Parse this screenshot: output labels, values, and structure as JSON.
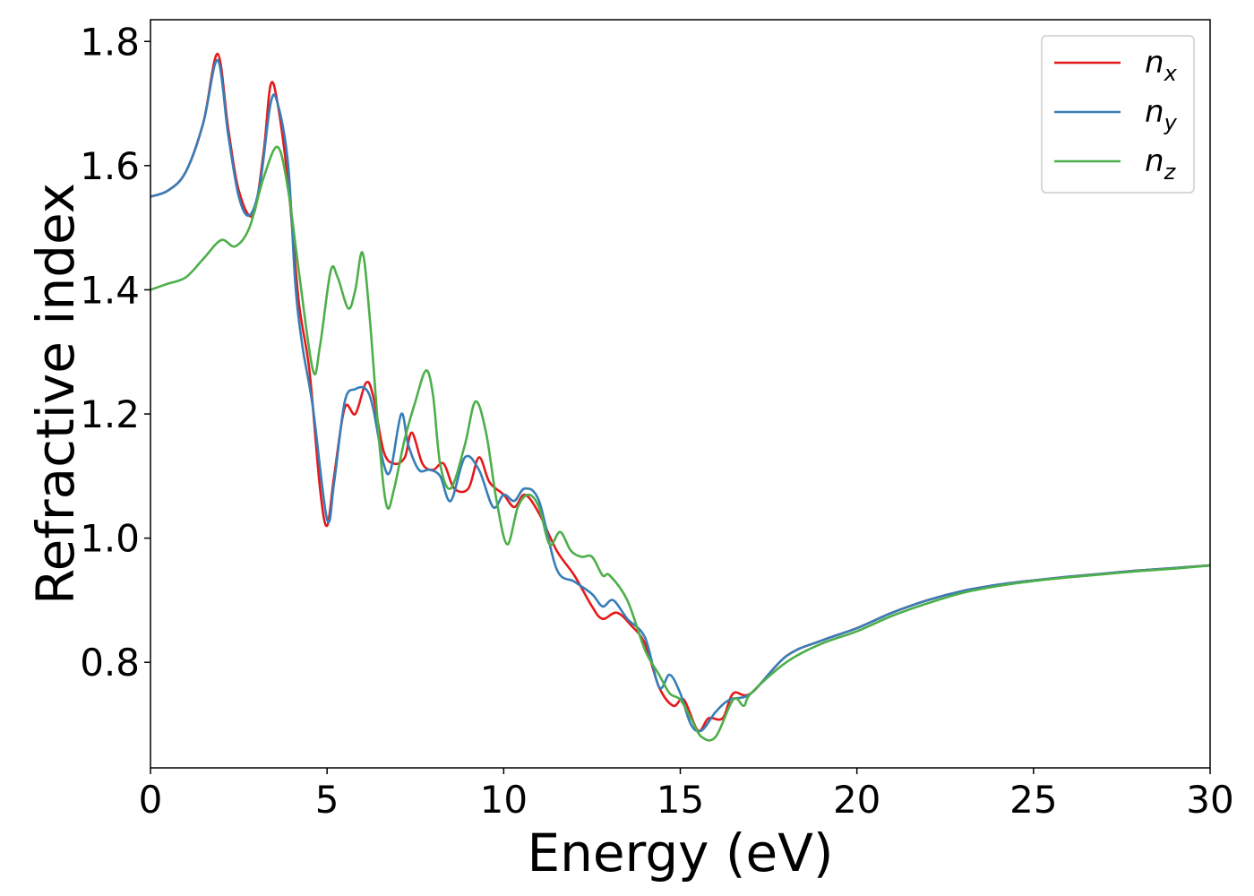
{
  "chart_data": {
    "type": "line",
    "xlabel": "Energy (eV)",
    "ylabel": "Refractive index",
    "xlim": [
      0,
      30
    ],
    "ylim": [
      0.63,
      1.835
    ],
    "xticks": [
      0,
      5,
      10,
      15,
      20,
      25,
      30
    ],
    "xtick_labels": [
      "0",
      "5",
      "10",
      "15",
      "20",
      "25",
      "30"
    ],
    "yticks": [
      0.8,
      1.0,
      1.2,
      1.4,
      1.6,
      1.8
    ],
    "ytick_labels": [
      "0.8",
      "1.0",
      "1.2",
      "1.4",
      "1.6",
      "1.8"
    ],
    "grid": false,
    "legend_position": "top-right",
    "series": [
      {
        "name": "n",
        "subscript": "x",
        "color": "#e41a1c",
        "points": [
          [
            0,
            1.55
          ],
          [
            0.5,
            1.56
          ],
          [
            1.0,
            1.59
          ],
          [
            1.5,
            1.67
          ],
          [
            1.9,
            1.78
          ],
          [
            2.2,
            1.66
          ],
          [
            2.5,
            1.56
          ],
          [
            2.9,
            1.52
          ],
          [
            3.2,
            1.62
          ],
          [
            3.4,
            1.73
          ],
          [
            3.6,
            1.7
          ],
          [
            3.9,
            1.57
          ],
          [
            4.2,
            1.38
          ],
          [
            4.5,
            1.27
          ],
          [
            4.8,
            1.08
          ],
          [
            5.0,
            1.02
          ],
          [
            5.2,
            1.1
          ],
          [
            5.5,
            1.21
          ],
          [
            5.8,
            1.2
          ],
          [
            6.1,
            1.25
          ],
          [
            6.3,
            1.23
          ],
          [
            6.6,
            1.14
          ],
          [
            6.9,
            1.12
          ],
          [
            7.2,
            1.13
          ],
          [
            7.4,
            1.17
          ],
          [
            7.7,
            1.12
          ],
          [
            8.0,
            1.11
          ],
          [
            8.3,
            1.12
          ],
          [
            8.6,
            1.08
          ],
          [
            9.0,
            1.08
          ],
          [
            9.3,
            1.13
          ],
          [
            9.6,
            1.09
          ],
          [
            10.0,
            1.07
          ],
          [
            10.3,
            1.05
          ],
          [
            10.6,
            1.07
          ],
          [
            11.0,
            1.04
          ],
          [
            11.5,
            0.98
          ],
          [
            12.0,
            0.94
          ],
          [
            12.5,
            0.89
          ],
          [
            12.8,
            0.87
          ],
          [
            13.2,
            0.88
          ],
          [
            13.6,
            0.86
          ],
          [
            14.0,
            0.83
          ],
          [
            14.4,
            0.76
          ],
          [
            14.8,
            0.73
          ],
          [
            15.1,
            0.74
          ],
          [
            15.5,
            0.69
          ],
          [
            15.8,
            0.71
          ],
          [
            16.2,
            0.71
          ],
          [
            16.5,
            0.75
          ],
          [
            17.0,
            0.75
          ],
          [
            18.0,
            0.81
          ],
          [
            19.0,
            0.835
          ],
          [
            20.0,
            0.855
          ],
          [
            21.0,
            0.88
          ],
          [
            22.0,
            0.9
          ],
          [
            23.0,
            0.915
          ],
          [
            24.0,
            0.925
          ],
          [
            25.0,
            0.932
          ],
          [
            26.0,
            0.938
          ],
          [
            27.0,
            0.943
          ],
          [
            28.0,
            0.948
          ],
          [
            29.0,
            0.952
          ],
          [
            30.0,
            0.956
          ]
        ]
      },
      {
        "name": "n",
        "subscript": "y",
        "color": "#377eb8",
        "points": [
          [
            0,
            1.55
          ],
          [
            0.5,
            1.56
          ],
          [
            1.0,
            1.59
          ],
          [
            1.5,
            1.67
          ],
          [
            1.9,
            1.77
          ],
          [
            2.2,
            1.65
          ],
          [
            2.5,
            1.55
          ],
          [
            2.8,
            1.52
          ],
          [
            3.1,
            1.57
          ],
          [
            3.4,
            1.7
          ],
          [
            3.6,
            1.7
          ],
          [
            3.9,
            1.6
          ],
          [
            4.1,
            1.41
          ],
          [
            4.3,
            1.31
          ],
          [
            4.6,
            1.21
          ],
          [
            5.0,
            1.03
          ],
          [
            5.2,
            1.09
          ],
          [
            5.5,
            1.22
          ],
          [
            5.8,
            1.24
          ],
          [
            6.1,
            1.24
          ],
          [
            6.3,
            1.21
          ],
          [
            6.6,
            1.12
          ],
          [
            6.8,
            1.11
          ],
          [
            7.1,
            1.2
          ],
          [
            7.3,
            1.15
          ],
          [
            7.6,
            1.11
          ],
          [
            7.9,
            1.11
          ],
          [
            8.2,
            1.1
          ],
          [
            8.5,
            1.06
          ],
          [
            8.9,
            1.13
          ],
          [
            9.3,
            1.11
          ],
          [
            9.7,
            1.05
          ],
          [
            10.0,
            1.07
          ],
          [
            10.3,
            1.06
          ],
          [
            10.6,
            1.08
          ],
          [
            11.0,
            1.06
          ],
          [
            11.5,
            0.95
          ],
          [
            12.0,
            0.93
          ],
          [
            12.5,
            0.91
          ],
          [
            12.8,
            0.89
          ],
          [
            13.1,
            0.9
          ],
          [
            13.5,
            0.87
          ],
          [
            14.0,
            0.84
          ],
          [
            14.4,
            0.76
          ],
          [
            14.7,
            0.78
          ],
          [
            15.0,
            0.75
          ],
          [
            15.3,
            0.7
          ],
          [
            15.6,
            0.69
          ],
          [
            16.0,
            0.72
          ],
          [
            16.4,
            0.74
          ],
          [
            17.0,
            0.75
          ],
          [
            18.0,
            0.81
          ],
          [
            19.0,
            0.835
          ],
          [
            20.0,
            0.855
          ],
          [
            21.0,
            0.88
          ],
          [
            22.0,
            0.9
          ],
          [
            23.0,
            0.915
          ],
          [
            24.0,
            0.925
          ],
          [
            25.0,
            0.932
          ],
          [
            26.0,
            0.938
          ],
          [
            27.0,
            0.943
          ],
          [
            28.0,
            0.948
          ],
          [
            29.0,
            0.952
          ],
          [
            30.0,
            0.956
          ]
        ]
      },
      {
        "name": "n",
        "subscript": "z",
        "color": "#4daf4a",
        "points": [
          [
            0,
            1.4
          ],
          [
            0.5,
            1.41
          ],
          [
            1.0,
            1.42
          ],
          [
            1.5,
            1.45
          ],
          [
            2.0,
            1.48
          ],
          [
            2.4,
            1.47
          ],
          [
            2.8,
            1.5
          ],
          [
            3.2,
            1.58
          ],
          [
            3.6,
            1.63
          ],
          [
            3.9,
            1.56
          ],
          [
            4.2,
            1.43
          ],
          [
            4.6,
            1.27
          ],
          [
            4.8,
            1.31
          ],
          [
            5.1,
            1.43
          ],
          [
            5.3,
            1.42
          ],
          [
            5.6,
            1.37
          ],
          [
            5.8,
            1.4
          ],
          [
            6.0,
            1.46
          ],
          [
            6.2,
            1.36
          ],
          [
            6.5,
            1.14
          ],
          [
            6.7,
            1.05
          ],
          [
            6.9,
            1.08
          ],
          [
            7.2,
            1.16
          ],
          [
            7.5,
            1.22
          ],
          [
            7.8,
            1.27
          ],
          [
            8.0,
            1.23
          ],
          [
            8.2,
            1.12
          ],
          [
            8.5,
            1.08
          ],
          [
            8.9,
            1.15
          ],
          [
            9.2,
            1.22
          ],
          [
            9.5,
            1.17
          ],
          [
            9.8,
            1.06
          ],
          [
            10.1,
            0.99
          ],
          [
            10.4,
            1.05
          ],
          [
            10.7,
            1.07
          ],
          [
            11.0,
            1.05
          ],
          [
            11.3,
            0.99
          ],
          [
            11.6,
            1.01
          ],
          [
            11.9,
            0.98
          ],
          [
            12.2,
            0.97
          ],
          [
            12.5,
            0.97
          ],
          [
            12.8,
            0.94
          ],
          [
            13.0,
            0.94
          ],
          [
            13.5,
            0.9
          ],
          [
            14.0,
            0.82
          ],
          [
            14.4,
            0.78
          ],
          [
            14.7,
            0.75
          ],
          [
            15.0,
            0.74
          ],
          [
            15.3,
            0.71
          ],
          [
            15.6,
            0.68
          ],
          [
            16.0,
            0.68
          ],
          [
            16.5,
            0.74
          ],
          [
            16.8,
            0.73
          ],
          [
            17.0,
            0.75
          ],
          [
            18.0,
            0.8
          ],
          [
            19.0,
            0.83
          ],
          [
            20.0,
            0.85
          ],
          [
            21.0,
            0.875
          ],
          [
            22.0,
            0.895
          ],
          [
            23.0,
            0.912
          ],
          [
            24.0,
            0.923
          ],
          [
            25.0,
            0.931
          ],
          [
            26.0,
            0.937
          ],
          [
            27.0,
            0.942
          ],
          [
            28.0,
            0.947
          ],
          [
            29.0,
            0.951
          ],
          [
            30.0,
            0.956
          ]
        ]
      }
    ]
  }
}
